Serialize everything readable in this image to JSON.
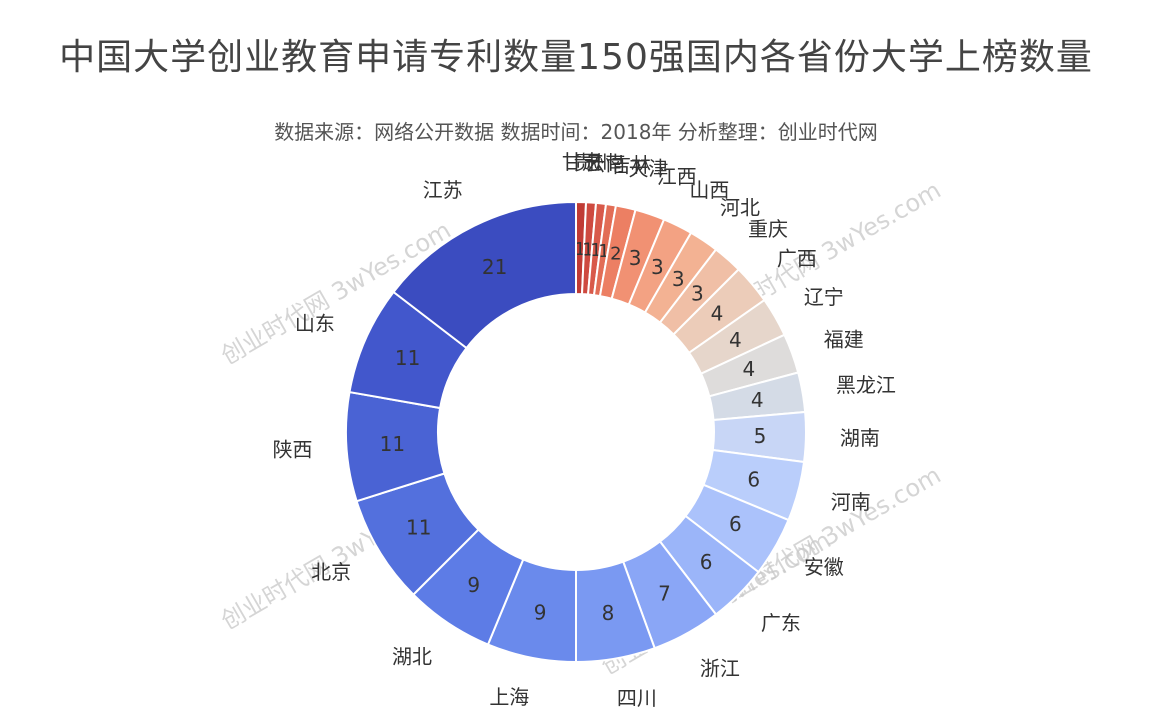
{
  "title": "中国大学创业教育申请专利数量150强国内各省份大学上榜数量",
  "subtitle": "数据来源：网络公开数据  数据时间：2018年  分析整理：创业时代网",
  "watermark": "创业时代网 3wYes.com",
  "chart_data": {
    "type": "pie",
    "donut": true,
    "title": "中国大学创业教育申请专利数量150强国内各省份大学上榜数量",
    "subtitle": "数据来源：网络公开数据  数据时间：2018年  分析整理：创业时代网",
    "legend": "none",
    "categories": [
      "江苏",
      "山东",
      "陕西",
      "北京",
      "湖北",
      "上海",
      "四川",
      "浙江",
      "广东",
      "安徽",
      "河南",
      "湖南",
      "黑龙江",
      "福建",
      "辽宁",
      "广西",
      "重庆",
      "河北",
      "山西",
      "江西",
      "天津",
      "吉林",
      "云南",
      "贵州",
      "甘肃"
    ],
    "values": [
      21,
      11,
      11,
      11,
      9,
      9,
      8,
      7,
      6,
      6,
      6,
      5,
      4,
      4,
      4,
      4,
      3,
      3,
      3,
      3,
      2,
      1,
      1,
      1,
      1
    ],
    "colors": [
      "#3b4cc0",
      "#4257cc",
      "#4a63d4",
      "#5370dd",
      "#5d7ce6",
      "#6a8aec",
      "#7a99f2",
      "#8aa6f6",
      "#9bb5f9",
      "#abc2fb",
      "#bacefb",
      "#c8d6f6",
      "#d4dbe6",
      "#dedcdb",
      "#e6d6cb",
      "#ecccb9",
      "#f0bfa6",
      "#f3b293",
      "#f3a283",
      "#f19173",
      "#ec7f63",
      "#e26d56",
      "#d8594a",
      "#ce4a40",
      "#c03b35"
    ]
  }
}
